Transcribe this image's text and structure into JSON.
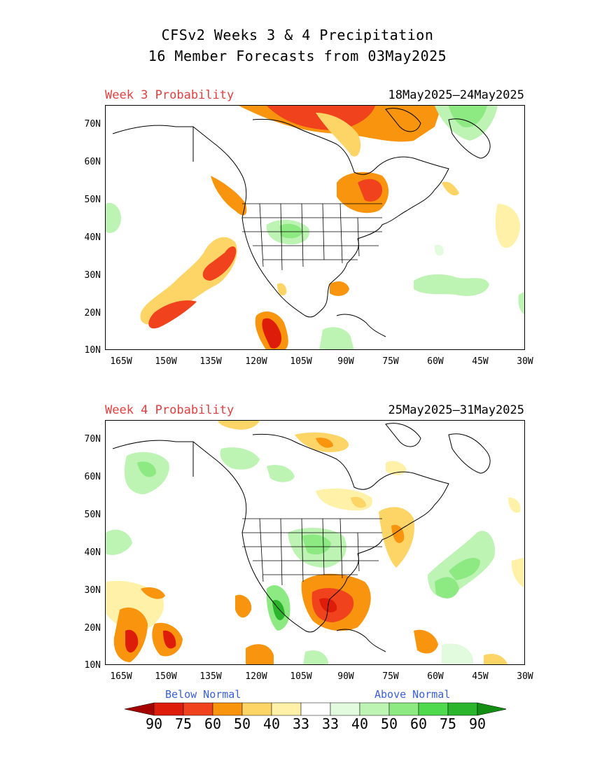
{
  "title_line1": "CFSv2 Weeks 3 & 4 Precipitation",
  "title_line2": "16 Member Forecasts from 03May2025",
  "panels": [
    {
      "label": "Week 3 Probability",
      "dates": "18May2025—24May2025"
    },
    {
      "label": "Week 4 Probability",
      "dates": "25May2025—31May2025"
    }
  ],
  "lat_ticks": [
    "70N",
    "60N",
    "50N",
    "40N",
    "30N",
    "20N",
    "10N"
  ],
  "lon_ticks": [
    "165W",
    "150W",
    "135W",
    "120W",
    "105W",
    "90W",
    "75W",
    "60W",
    "45W",
    "30W"
  ],
  "legend": {
    "below_label": "Below Normal",
    "above_label": "Above Normal",
    "values": [
      "90",
      "75",
      "60",
      "50",
      "40",
      "33",
      "33",
      "40",
      "50",
      "60",
      "75",
      "90"
    ],
    "colors": [
      "#a50000",
      "#de1c0a",
      "#f0421c",
      "#f8940e",
      "#fdd466",
      "#fff2a8",
      "#ffffff",
      "#e2fbde",
      "#bdf3b3",
      "#8de982",
      "#4fd94c",
      "#2bb52c",
      "#128f12"
    ]
  }
}
